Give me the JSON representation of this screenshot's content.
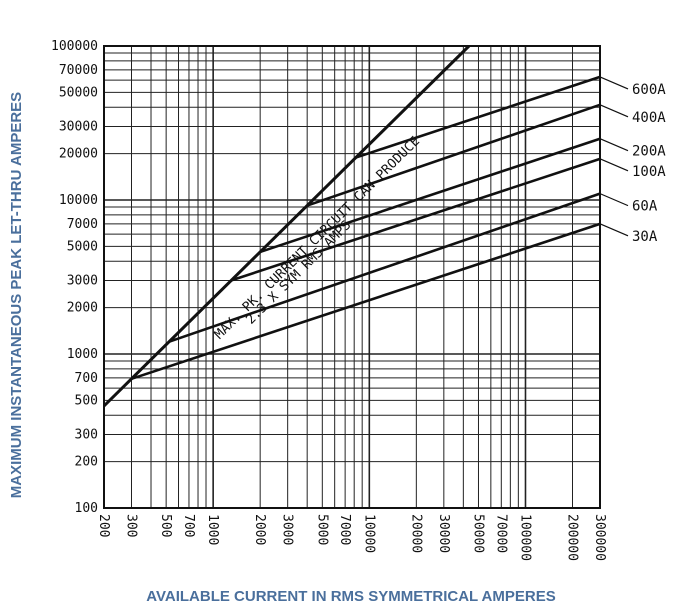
{
  "chart_data": {
    "type": "line",
    "title": "",
    "xlabel": "AVAILABLE CURRENT IN RMS SYMMETRICAL AMPERES",
    "ylabel": "MAXIMUM INSTANTANEOUS PEAK LET-THRU AMPERES",
    "xscale": "log",
    "yscale": "log",
    "xlim": [
      200,
      300000
    ],
    "ylim": [
      100,
      100000
    ],
    "grid": true,
    "x_ticks": [
      "200",
      "300",
      "500",
      "700",
      "1000",
      "2000",
      "3000",
      "5000",
      "7000",
      "10000",
      "20000",
      "30000",
      "50000",
      "70000",
      "100000",
      "200000",
      "300000"
    ],
    "y_ticks": [
      "100",
      "200",
      "300",
      "500",
      "700",
      "1000",
      "2000",
      "3000",
      "5000",
      "7000",
      "10000",
      "20000",
      "30000",
      "50000",
      "70000",
      "100000"
    ],
    "annotation": {
      "line1": "MAX. PK. CURRENT CIRCUIT CAN PRODUCE",
      "line2": "2.3 X SYM RMS AMPS",
      "x": [
        200,
        43478
      ],
      "y": [
        460,
        100000
      ]
    },
    "series": [
      {
        "name": "600A",
        "x": [
          8200,
          300000
        ],
        "y": [
          18860,
          63000
        ]
      },
      {
        "name": "400A",
        "x": [
          4000,
          300000
        ],
        "y": [
          9200,
          41500
        ]
      },
      {
        "name": "200A",
        "x": [
          2000,
          300000
        ],
        "y": [
          4600,
          25000
        ]
      },
      {
        "name": "100A",
        "x": [
          1300,
          300000
        ],
        "y": [
          3000,
          18500
        ]
      },
      {
        "name": "60A",
        "x": [
          520,
          300000
        ],
        "y": [
          1200,
          11000
        ]
      },
      {
        "name": "30A",
        "x": [
          300,
          300000
        ],
        "y": [
          690,
          7000
        ]
      }
    ]
  }
}
